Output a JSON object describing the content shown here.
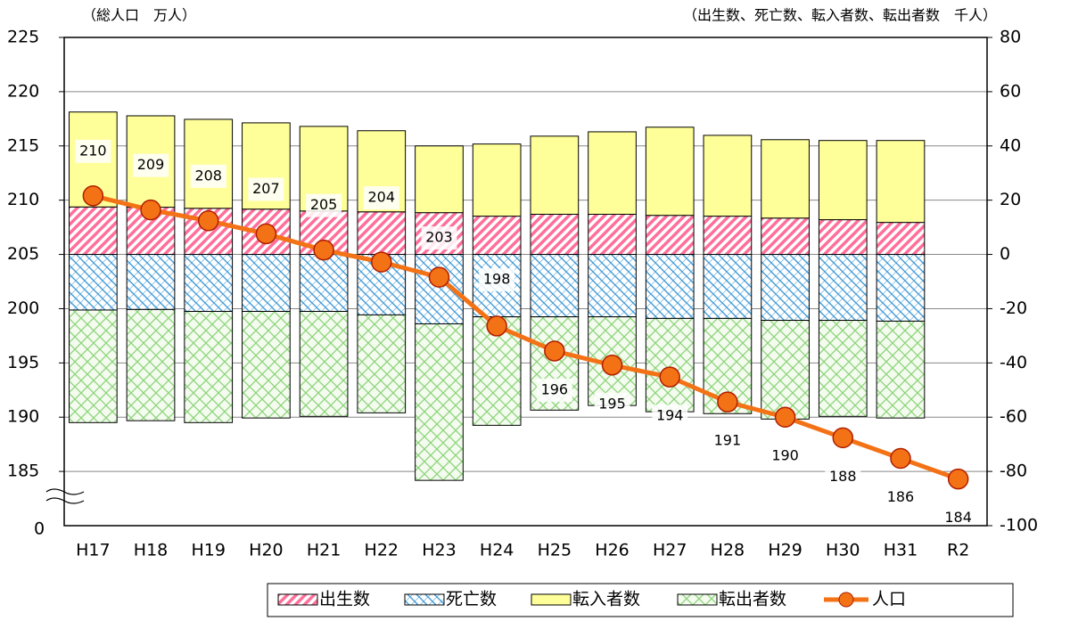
{
  "chart_data": {
    "type": "stacked_bar_line",
    "title_left": "（総人口　万人）",
    "title_right": "（出生数、死亡数、転入者数、転出者数　千人）",
    "categories": [
      "H17",
      "H18",
      "H19",
      "H20",
      "H21",
      "H22",
      "H23",
      "H24",
      "H25",
      "H26",
      "H27",
      "H28",
      "H29",
      "H30",
      "H31",
      "R2"
    ],
    "ylim": [
      180,
      225
    ],
    "yticks": [
      185,
      190,
      195,
      200,
      205,
      210,
      215,
      220,
      225
    ],
    "y_break_label": "0",
    "y2lim": [
      -100,
      80
    ],
    "y2ticks": [
      -100,
      -80,
      -60,
      -40,
      -20,
      0,
      20,
      40,
      60,
      80
    ],
    "grid": true,
    "legend": "bottom-right",
    "series": [
      {
        "name": "出生数",
        "color": "#ff6f9a",
        "pattern": "stripes",
        "axis": "y2",
        "values": [
          17.5,
          17.4,
          17,
          16.7,
          16,
          15.7,
          15.4,
          14.1,
          14.8,
          14.8,
          14.4,
          14.1,
          13.4,
          12.8,
          11.8,
          null
        ]
      },
      {
        "name": "死亡数",
        "color": "#4a9fd8",
        "pattern": "hatch",
        "axis": "y2",
        "values": [
          -20.5,
          -20.3,
          -21,
          -21,
          -21,
          -22.3,
          -25.6,
          -23,
          -23,
          -23,
          -23.6,
          -23.6,
          -24.3,
          -24.3,
          -24.6,
          null
        ]
      },
      {
        "name": "転入者数",
        "color": "#ffff99",
        "pattern": "solid",
        "axis": "y2",
        "values": [
          35,
          33.7,
          32.8,
          31.8,
          31.2,
          29.9,
          24.6,
          26.6,
          28.8,
          30.4,
          32.5,
          29.8,
          28.9,
          29.2,
          30.2,
          null
        ]
      },
      {
        "name": "転出者数",
        "color": "#8cd47a",
        "pattern": "cross",
        "axis": "y2",
        "values": [
          -41.5,
          -41,
          -41,
          -39.3,
          -38.7,
          -36.1,
          -57.7,
          -40,
          -34.4,
          -32.7,
          -34.4,
          -35.1,
          -36.4,
          -35.4,
          -35.7,
          null
        ]
      },
      {
        "name": "人口",
        "color": "#f47216",
        "type": "line",
        "axis": "y",
        "values": [
          210.4,
          209.1,
          208.1,
          206.9,
          205.4,
          204.3,
          202.9,
          198.4,
          196.1,
          194.8,
          193.7,
          191.4,
          190.0,
          188.1,
          186.2,
          184.3
        ],
        "value_labels": [
          "210",
          "209",
          "208",
          "207",
          "205",
          "204",
          "203",
          "198",
          "196",
          "195",
          "194",
          "191",
          "190",
          "188",
          "186",
          "184"
        ]
      }
    ]
  }
}
